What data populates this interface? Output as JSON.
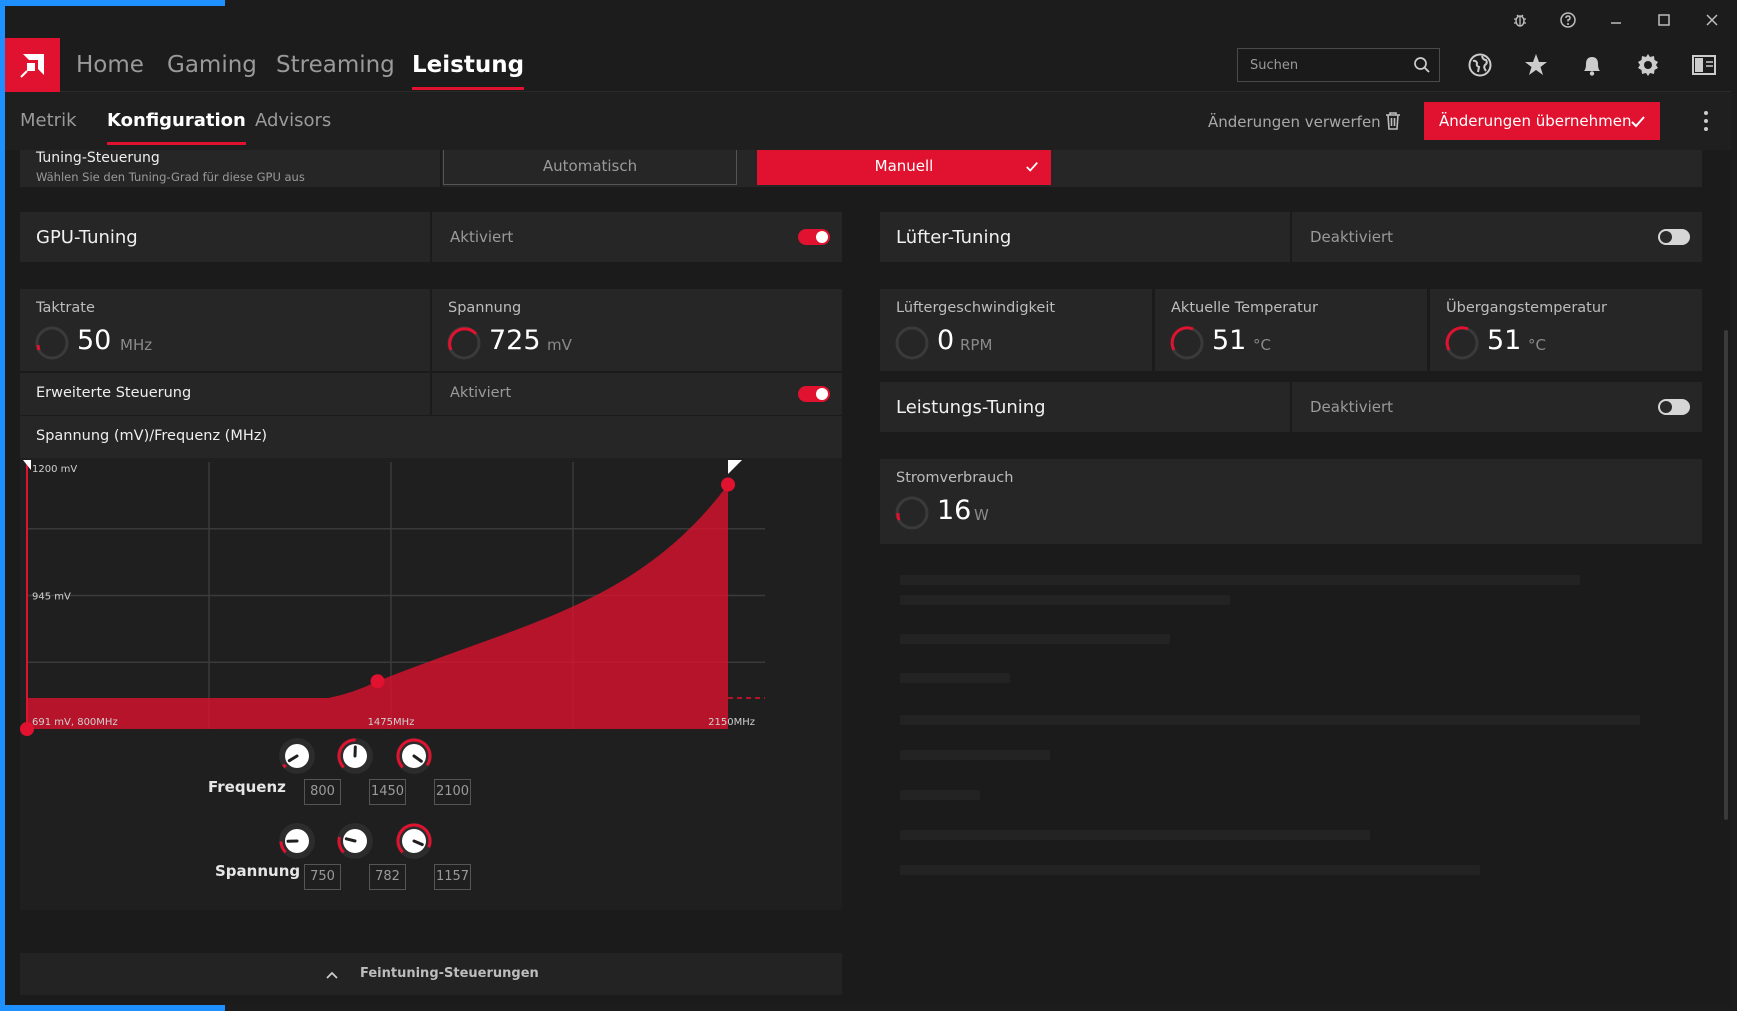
{
  "titlebar": {
    "icons": [
      "bug-icon",
      "help-icon",
      "minimize-icon",
      "maximize-icon",
      "close-icon"
    ]
  },
  "mainnav": {
    "items": [
      "Home",
      "Gaming",
      "Streaming",
      "Leistung"
    ],
    "active": "Leistung",
    "search_placeholder": "Suchen",
    "right_icons": [
      "globe-icon",
      "star-icon",
      "bell-icon",
      "gear-icon",
      "sidebar-icon"
    ]
  },
  "subnav": {
    "items": [
      "Metrik",
      "Konfiguration",
      "Advisors"
    ],
    "active": "Konfiguration",
    "discard_label": "Änderungen verwerfen",
    "apply_label": "Änderungen übernehmen"
  },
  "tuning_control": {
    "title": "Tuning-Steuerung",
    "subtitle": "Wählen Sie den Tuning-Grad für diese GPU aus",
    "option_auto": "Automatisch",
    "option_manual": "Manuell",
    "selected": "Manuell"
  },
  "gpu_tuning": {
    "title": "GPU-Tuning",
    "state": "Aktiviert",
    "enabled": true,
    "clock": {
      "label": "Taktrate",
      "value": "50",
      "unit": "MHz"
    },
    "voltage": {
      "label": "Spannung",
      "value": "725",
      "unit": "mV"
    },
    "advanced": {
      "label": "Erweiterte Steuerung",
      "state": "Aktiviert",
      "enabled": true
    },
    "curve_title": "Spannung (mV)/Frequenz (MHz)"
  },
  "fan_tuning": {
    "title": "Lüfter-Tuning",
    "state": "Deaktiviert",
    "enabled": false,
    "fan_speed": {
      "label": "Lüftergeschwindigkeit",
      "value": "0",
      "unit": "RPM"
    },
    "current_temp": {
      "label": "Aktuelle Temperatur",
      "value": "51",
      "unit": "°C"
    },
    "junction_temp": {
      "label": "Übergangstemperatur",
      "value": "51",
      "unit": "°C"
    }
  },
  "power_tuning": {
    "title": "Leistungs-Tuning",
    "state": "Deaktiviert",
    "enabled": false,
    "power_draw": {
      "label": "Stromverbrauch",
      "value": "16",
      "unit": "W"
    }
  },
  "chart_data": {
    "type": "area",
    "y_tick_labels": [
      "1200 mV",
      "945 mV"
    ],
    "x_tick_labels": [
      "691 mV, 800MHz",
      "1475MHz",
      "2150MHz"
    ],
    "x": [
      800,
      1450,
      2100
    ],
    "series": [
      {
        "values": [
          750,
          782,
          1157
        ]
      }
    ],
    "xlim": [
      800,
      2150
    ],
    "ylim": [
      691,
      1200
    ],
    "grid": true,
    "accent": "#e0122f"
  },
  "controls": {
    "frequency_label": "Frequenz",
    "voltage_label": "Spannung",
    "frequency_values": [
      "800",
      "1450",
      "2100"
    ],
    "voltage_values": [
      "750",
      "782",
      "1157"
    ]
  },
  "fine_tuning_label": "Feintuning-Steuerungen",
  "colors": {
    "accent": "#e0122f",
    "background": "#1b1b1b",
    "card": "#262626"
  }
}
